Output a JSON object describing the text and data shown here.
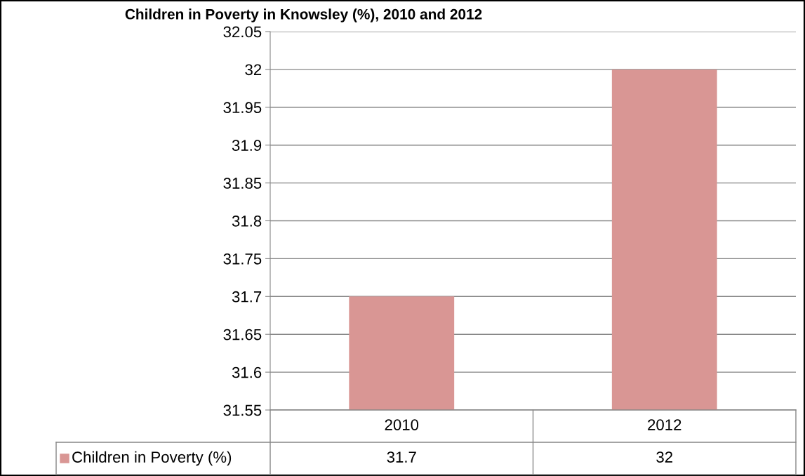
{
  "chart_data": {
    "type": "bar",
    "title": "Children in Poverty in Knowsley (%), 2010 and 2012",
    "categories": [
      "2010",
      "2012"
    ],
    "series": [
      {
        "name": "Children in Poverty (%)",
        "color": "#d99694",
        "values": [
          31.7,
          32
        ]
      }
    ],
    "ylim": [
      31.55,
      32.05
    ],
    "yticks": [
      31.55,
      31.6,
      31.65,
      31.7,
      31.75,
      31.8,
      31.85,
      31.9,
      31.95,
      32,
      32.05
    ],
    "grid": "y",
    "legend": "bottom",
    "data_labels": true
  }
}
